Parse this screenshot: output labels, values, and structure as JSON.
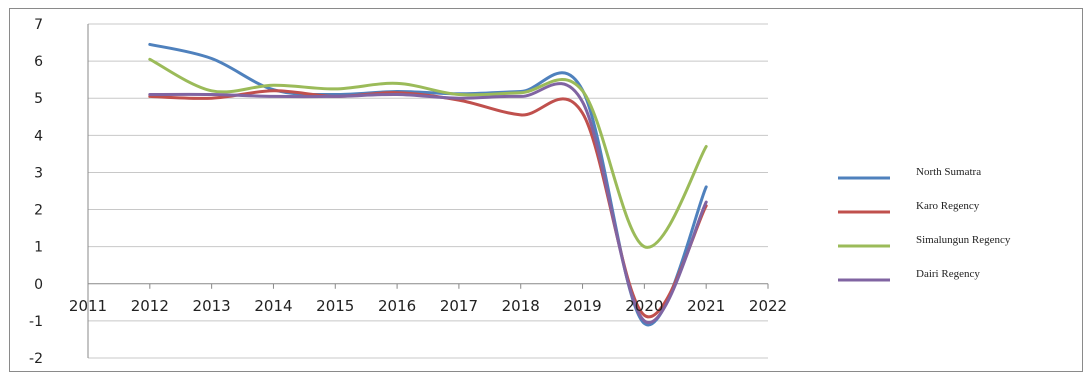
{
  "chart_data": {
    "type": "line",
    "title": "",
    "xlabel": "",
    "ylabel": "",
    "xlim": [
      2011,
      2022
    ],
    "ylim": [
      -2,
      7
    ],
    "x_ticks": [
      "2011",
      "2012",
      "2013",
      "2014",
      "2015",
      "2016",
      "2017",
      "2018",
      "2019",
      "2020",
      "2021",
      "2022"
    ],
    "y_ticks": [
      "7",
      "6",
      "5",
      "4",
      "3",
      "2",
      "1",
      "0",
      "-1",
      "-2"
    ],
    "grid": true,
    "legend_position": "right",
    "x": [
      2012,
      2013,
      2014,
      2015,
      2016,
      2017,
      2018,
      2019,
      2020,
      2021
    ],
    "series": [
      {
        "name": "North Sumatra",
        "color": "#4f81bd",
        "values": [
          6.45,
          6.07,
          5.23,
          5.1,
          5.18,
          5.12,
          5.18,
          5.22,
          -1.07,
          2.61
        ]
      },
      {
        "name": "Karo Regency",
        "color": "#c0504d",
        "values": [
          5.05,
          5.0,
          5.2,
          5.05,
          5.15,
          4.95,
          4.55,
          4.6,
          -0.85,
          2.1
        ]
      },
      {
        "name": "Simalungun Regency",
        "color": "#9bbb59",
        "values": [
          6.05,
          5.2,
          5.35,
          5.25,
          5.4,
          5.1,
          5.15,
          5.2,
          1.0,
          3.7
        ]
      },
      {
        "name": "Dairi Regency",
        "color": "#8064a2",
        "values": [
          5.1,
          5.1,
          5.05,
          5.05,
          5.1,
          5.0,
          5.05,
          4.9,
          -1.0,
          2.2
        ]
      }
    ]
  }
}
